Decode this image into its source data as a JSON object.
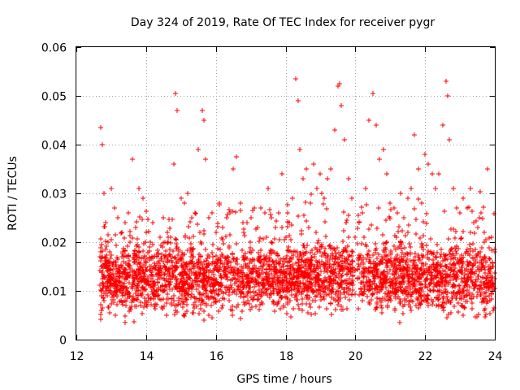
{
  "chart_data": {
    "type": "scatter",
    "title": "Day 324 of 2019, Rate Of TEC Index for receiver pygr",
    "xlabel": "GPS time / hours",
    "ylabel": "ROTI / TECUs",
    "xlim": [
      12,
      24
    ],
    "ylim": [
      0,
      0.06
    ],
    "x_ticks": [
      12,
      14,
      16,
      18,
      20,
      22,
      24
    ],
    "y_ticks": [
      0,
      0.01,
      0.02,
      0.03,
      0.04,
      0.05,
      0.06
    ],
    "x_tick_labels": [
      "12",
      "14",
      "16",
      "18",
      "20",
      "22",
      "24"
    ],
    "y_tick_labels": [
      "0",
      "0.01",
      "0.02",
      "0.03",
      "0.04",
      "0.05",
      "0.06"
    ],
    "grid": true,
    "marker": "+",
    "color": "#ff0000",
    "series": [
      {
        "name": "ROTI",
        "data_note": "dense scatter of several thousand '+' points; values below are a representative sample read from the plot",
        "x": [
          12.7,
          12.75,
          12.8,
          12.85,
          12.9,
          13.0,
          13.1,
          13.2,
          13.3,
          13.4,
          13.5,
          13.6,
          13.7,
          13.8,
          13.9,
          14.0,
          14.1,
          14.2,
          14.3,
          14.4,
          14.5,
          14.6,
          14.7,
          14.8,
          14.85,
          14.9,
          15.0,
          15.1,
          15.2,
          15.3,
          15.4,
          15.5,
          15.6,
          15.65,
          15.7,
          15.8,
          15.9,
          16.0,
          16.1,
          16.2,
          16.3,
          16.4,
          16.5,
          16.6,
          16.7,
          16.8,
          16.9,
          17.0,
          17.1,
          17.2,
          17.3,
          17.4,
          17.5,
          17.6,
          17.7,
          17.8,
          17.9,
          18.0,
          18.1,
          18.2,
          18.3,
          18.35,
          18.4,
          18.5,
          18.6,
          18.7,
          18.8,
          18.9,
          19.0,
          19.1,
          19.2,
          19.3,
          19.4,
          19.5,
          19.55,
          19.6,
          19.7,
          19.8,
          19.9,
          20.0,
          20.1,
          20.2,
          20.3,
          20.4,
          20.5,
          20.6,
          20.7,
          20.8,
          20.9,
          21.0,
          21.1,
          21.2,
          21.3,
          21.4,
          21.5,
          21.6,
          21.7,
          21.8,
          21.9,
          22.0,
          22.1,
          22.2,
          22.3,
          22.4,
          22.5,
          22.6,
          22.65,
          22.7,
          22.8,
          22.9,
          23.0,
          23.1,
          23.2,
          23.3,
          23.4,
          23.5,
          23.6,
          23.7,
          23.8,
          23.9,
          24.0
        ],
        "y": [
          0.0435,
          0.04,
          0.03,
          0.024,
          0.02,
          0.031,
          0.027,
          0.025,
          0.022,
          0.024,
          0.026,
          0.037,
          0.023,
          0.019,
          0.029,
          0.022,
          0.019,
          0.024,
          0.017,
          0.021,
          0.025,
          0.022,
          0.021,
          0.036,
          0.0505,
          0.047,
          0.029,
          0.028,
          0.03,
          0.025,
          0.026,
          0.039,
          0.047,
          0.045,
          0.037,
          0.025,
          0.026,
          0.022,
          0.028,
          0.023,
          0.025,
          0.026,
          0.035,
          0.0375,
          0.028,
          0.022,
          0.024,
          0.025,
          0.027,
          0.023,
          0.027,
          0.026,
          0.031,
          0.025,
          0.023,
          0.026,
          0.034,
          0.021,
          0.024,
          0.029,
          0.0535,
          0.049,
          0.039,
          0.033,
          0.035,
          0.028,
          0.036,
          0.031,
          0.034,
          0.029,
          0.033,
          0.035,
          0.043,
          0.052,
          0.0525,
          0.048,
          0.041,
          0.033,
          0.029,
          0.021,
          0.024,
          0.026,
          0.031,
          0.045,
          0.0505,
          0.044,
          0.037,
          0.039,
          0.034,
          0.028,
          0.027,
          0.026,
          0.03,
          0.025,
          0.029,
          0.031,
          0.042,
          0.035,
          0.028,
          0.038,
          0.036,
          0.034,
          0.031,
          0.034,
          0.044,
          0.053,
          0.05,
          0.041,
          0.031,
          0.027,
          0.026,
          0.029,
          0.027,
          0.031,
          0.024,
          0.023,
          0.026,
          0.022,
          0.035,
          0.021,
          0.018
        ]
      }
    ]
  }
}
